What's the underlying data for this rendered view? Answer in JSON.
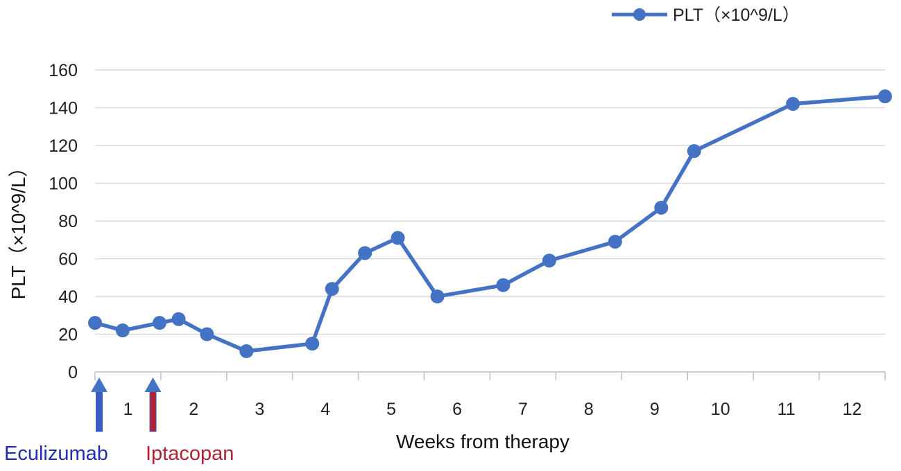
{
  "chart_data": {
    "type": "line",
    "title": "",
    "xlabel": "Weeks from therapy",
    "ylabel": "PLT（×10^9/L）",
    "ylim": [
      0,
      160
    ],
    "yticks": [
      0,
      20,
      40,
      60,
      80,
      100,
      120,
      140,
      160
    ],
    "xlim": [
      0,
      12
    ],
    "x_tick_labels": [
      "1",
      "2",
      "3",
      "4",
      "5",
      "6",
      "7",
      "8",
      "9",
      "10",
      "11",
      "12"
    ],
    "grid": true,
    "legend": {
      "position": "top-right",
      "entries": [
        "PLT（×10^9/L）"
      ]
    },
    "series": [
      {
        "name": "PLT（×10^9/L）",
        "color": "#4472c4",
        "points": [
          {
            "x": 0.0,
            "y": 26
          },
          {
            "x": 0.42,
            "y": 22
          },
          {
            "x": 0.98,
            "y": 26
          },
          {
            "x": 1.27,
            "y": 28
          },
          {
            "x": 1.7,
            "y": 20
          },
          {
            "x": 2.3,
            "y": 11
          },
          {
            "x": 3.3,
            "y": 15
          },
          {
            "x": 3.6,
            "y": 44
          },
          {
            "x": 4.1,
            "y": 63
          },
          {
            "x": 4.6,
            "y": 71
          },
          {
            "x": 5.2,
            "y": 40
          },
          {
            "x": 6.2,
            "y": 46
          },
          {
            "x": 6.9,
            "y": 59
          },
          {
            "x": 7.9,
            "y": 69
          },
          {
            "x": 8.6,
            "y": 87
          },
          {
            "x": 9.1,
            "y": 117
          },
          {
            "x": 10.6,
            "y": 142
          },
          {
            "x": 12.0,
            "y": 146
          }
        ]
      }
    ],
    "annotations": [
      {
        "label": "Eculizumab",
        "x": 0.0,
        "color": "#1f2fb0",
        "arrow_color": "#3a5bbf"
      },
      {
        "label": "Iptacopan",
        "x": 0.88,
        "color": "#b22234",
        "arrow_color": "#b22234"
      }
    ]
  }
}
